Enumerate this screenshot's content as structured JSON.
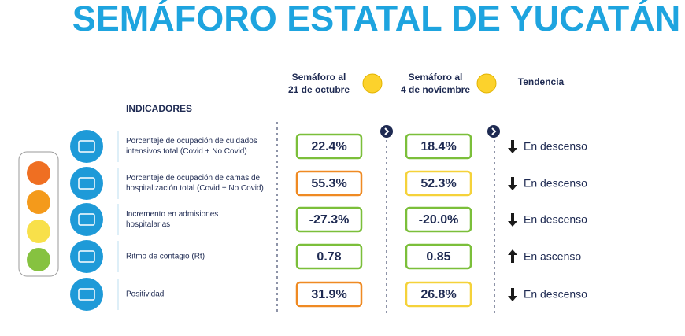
{
  "header": {
    "title": "SEMÁFORO ESTATAL DE YUCATÁN"
  },
  "columns": [
    [
      "Semáforo al",
      "21 de octubre"
    ],
    [
      "Semáforo al",
      "4 de noviembre"
    ],
    "Tendencia"
  ],
  "indicators_label": "INDICADORES",
  "rows": [
    {
      "indicator": [
        "Porcentaje de ocupación de cuidados",
        "intensivos total (Covid + No Covid)"
      ],
      "oct": "22.4%",
      "nov": "18.4%",
      "trend": "En descenso"
    },
    {
      "indicator": [
        "Porcentaje de ocupación de camas de",
        "hospitalización total (Covid + No Covid)"
      ],
      "oct": "55.3%",
      "nov": "52.3%",
      "trend": "En descenso"
    },
    {
      "indicator": [
        "Incremento en admisiones",
        "hospitalarias"
      ],
      "oct": "-27.3%",
      "nov": "-20.0%",
      "trend": "En descenso"
    },
    {
      "indicator": [
        "Ritmo de contagio (Rt)"
      ],
      "oct": "0.78",
      "nov": "0.85",
      "trend": "En ascenso"
    },
    {
      "indicator": [
        "Positividad"
      ],
      "oct": "31.9%",
      "nov": "26.8%",
      "trend": "En descenso"
    }
  ]
}
